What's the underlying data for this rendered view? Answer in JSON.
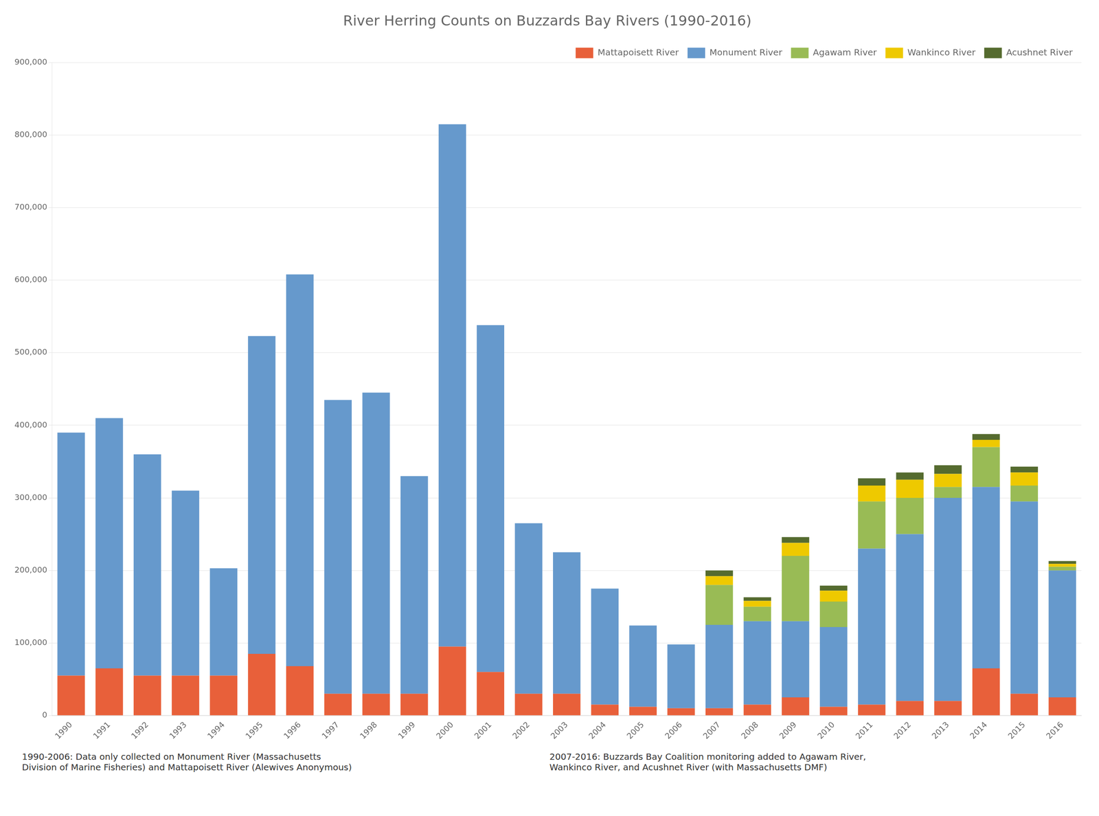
{
  "chart_data": {
    "type": "bar",
    "stacked": true,
    "title": "River Herring Counts on Buzzards Bay Rivers (1990-2016)",
    "categories": [
      "1990",
      "1991",
      "1992",
      "1993",
      "1994",
      "1995",
      "1996",
      "1997",
      "1998",
      "1999",
      "2000",
      "2001",
      "2002",
      "2003",
      "2004",
      "2005",
      "2006",
      "2007",
      "2008",
      "2009",
      "2010",
      "2011",
      "2012",
      "2013",
      "2014",
      "2015",
      "2016"
    ],
    "series": [
      {
        "name": "Mattapoisett River",
        "color": "#E8603A",
        "values": [
          55000,
          65000,
          55000,
          55000,
          55000,
          85000,
          68000,
          30000,
          30000,
          30000,
          95000,
          60000,
          30000,
          30000,
          15000,
          12000,
          10000,
          10000,
          15000,
          25000,
          12000,
          15000,
          20000,
          20000,
          65000,
          30000,
          25000
        ]
      },
      {
        "name": "Monument River",
        "color": "#6699CC",
        "values": [
          335000,
          345000,
          305000,
          255000,
          148000,
          438000,
          540000,
          405000,
          415000,
          300000,
          720000,
          478000,
          235000,
          195000,
          160000,
          112000,
          88000,
          115000,
          115000,
          105000,
          110000,
          215000,
          230000,
          280000,
          250000,
          265000,
          175000
        ]
      },
      {
        "name": "Agawam River",
        "color": "#99BB55",
        "values": [
          0,
          0,
          0,
          0,
          0,
          0,
          0,
          0,
          0,
          0,
          0,
          0,
          0,
          0,
          0,
          0,
          0,
          55000,
          20000,
          90000,
          35000,
          65000,
          50000,
          15000,
          55000,
          22000,
          5000
        ]
      },
      {
        "name": "Wankinco River",
        "color": "#EEC900",
        "values": [
          0,
          0,
          0,
          0,
          0,
          0,
          0,
          0,
          0,
          0,
          0,
          0,
          0,
          0,
          0,
          0,
          0,
          12000,
          8000,
          18000,
          15000,
          22000,
          25000,
          18000,
          10000,
          18000,
          4000
        ]
      },
      {
        "name": "Acushnet River",
        "color": "#556B2F",
        "values": [
          0,
          0,
          0,
          0,
          0,
          0,
          0,
          0,
          0,
          0,
          0,
          0,
          0,
          0,
          0,
          0,
          0,
          8000,
          5000,
          8000,
          7000,
          10000,
          10000,
          12000,
          8000,
          8000,
          4000
        ]
      }
    ],
    "ylim": [
      0,
      900000
    ],
    "yticks": [
      0,
      {
        "value": 100000,
        "label": "100,000"
      },
      {
        "value": 200000,
        "label": "200,000"
      },
      {
        "value": 300000,
        "label": "300,000"
      },
      {
        "value": 400000,
        "label": "400,000"
      },
      {
        "value": 500000,
        "label": "500,000"
      },
      {
        "value": 600000,
        "label": "600,000"
      },
      {
        "value": 700000,
        "label": "700,000"
      },
      {
        "value": 800000,
        "label": "800,000"
      },
      {
        "value": 900000,
        "label": "900,000"
      }
    ],
    "grid": true,
    "legend": "upper right",
    "annotations": [
      "1990-2006: Data only collected on Monument River (Massachusetts\nDivision of Marine Fisheries) and Mattapoisett River (Alewives Anonymous)",
      "2007-2016: Buzzards Bay Coalition monitoring added to Agawam River,\nWankinco River, and Acushnet River (with Massachusetts DMF)"
    ]
  }
}
